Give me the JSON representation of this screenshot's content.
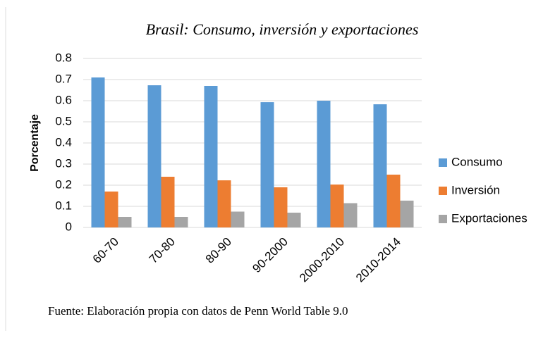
{
  "chart_data": {
    "type": "bar",
    "title": "Brasil: Consumo, inversión y exportaciones",
    "y_label": "Porcentaje",
    "caption": "Fuente: Elaboración propia con datos de Penn World Table 9.0",
    "categories": [
      "60-70",
      "70-80",
      "80-90",
      "90-2000",
      "2000-2010",
      "2010-2014"
    ],
    "series": [
      {
        "name": "Consumo",
        "color": "#5b9bd5",
        "values": [
          0.71,
          0.673,
          0.67,
          0.593,
          0.6,
          0.583
        ]
      },
      {
        "name": "Inversión",
        "color": "#ed7d31",
        "values": [
          0.17,
          0.24,
          0.223,
          0.19,
          0.203,
          0.25
        ]
      },
      {
        "name": "Exportaciones",
        "color": "#a5a5a5",
        "values": [
          0.05,
          0.05,
          0.075,
          0.07,
          0.115,
          0.127
        ]
      }
    ],
    "ylim": [
      0,
      0.8
    ],
    "yticks": [
      0,
      0.1,
      0.2,
      0.3,
      0.4,
      0.5,
      0.6,
      0.7,
      0.8
    ],
    "grid": true,
    "legend": "right"
  }
}
